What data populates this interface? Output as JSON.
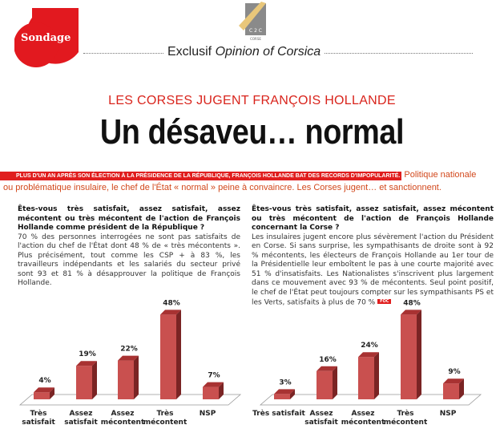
{
  "header": {
    "section_badge": "Sondage",
    "logo_text": "C2C CORSE",
    "kicker_prefix": "Exclusif",
    "kicker_brand": "Opinion of Corsica"
  },
  "article": {
    "subtitle": "LES CORSES JUGENT FRANÇOIS HOLLANDE",
    "title": "Un désaveu… normal",
    "lead_banner": "PLUS D'UN AN APRÈS SON ÉLECTION À LA PRÉSIDENCE DE LA RÉPUBLIQUE, FRANÇOIS HOLLANDE BAT DES RECORDS D'IMPOPULARITÉ.",
    "lead_text": "Politique nationale ou problématique insulaire, le chef de l'État « normal » peine à convaincre. Les Corses jugent… et sanctionnent.",
    "left": {
      "question": "Êtes-vous très satisfait, assez satisfait, assez mécontent ou très mécontent de l'action de François Hollande comme président de la République ?",
      "body": "70 % des personnes interrogées ne sont pas satisfaits de l'action du chef de l'État dont 48 % de « très mécontents ». Plus précisément, tout comme les CSP + à 83 %, les travailleurs indépendants et les salariés du secteur privé sont 93 et 81 % à désapprouver la politique de François Hollande."
    },
    "right": {
      "question": "Êtes-vous très satisfait, assez satisfait, assez mécontent ou très mécontent de l'action de François Hollande concernant la Corse ?",
      "body": "Les insulaires jugent encore plus sévèrement l'action du Président en Corse. Si sans surprise, les sympathisants de droite sont à 92 % mécontents, les électeurs de François Hollande au 1er tour de la Présidentielle leur emboîtent le pas à une courte majorité avec 51 % d'insatisfaits. Les Nationalistes s'inscrivent plus largement dans ce mouvement avec 93 % de mécontents. Seul point positif, le chef de l'État peut toujours compter sur les sympathisants PS et les Verts, satisfaits à plus de 70 %",
      "signature_badge": "FOC"
    }
  },
  "colors": {
    "accent": "#e01e1e",
    "bar_front": "#c9504f",
    "bar_side": "#7a2424",
    "bar_top": "#a83232"
  },
  "chart_data": [
    {
      "type": "bar",
      "style": "3d",
      "categories": [
        [
          "Très",
          "satisfait"
        ],
        [
          "Assez",
          "satisfait"
        ],
        [
          "Assez",
          "mécontent"
        ],
        [
          "Très",
          "mécontent"
        ],
        [
          "NSP"
        ]
      ],
      "values": [
        4,
        19,
        22,
        48,
        7
      ],
      "value_labels": [
        "4%",
        "19%",
        "22%",
        "48%",
        "7%"
      ],
      "unit": "%",
      "grid": false
    },
    {
      "type": "bar",
      "style": "3d",
      "categories": [
        [
          "Très satisfait"
        ],
        [
          "Assez",
          "satisfait"
        ],
        [
          "Assez",
          "mécontent"
        ],
        [
          "Très",
          "mécontent"
        ],
        [
          "NSP"
        ]
      ],
      "values": [
        3,
        16,
        24,
        48,
        9
      ],
      "value_labels": [
        "3%",
        "16%",
        "24%",
        "48%",
        "9%"
      ],
      "unit": "%",
      "grid": false
    }
  ]
}
